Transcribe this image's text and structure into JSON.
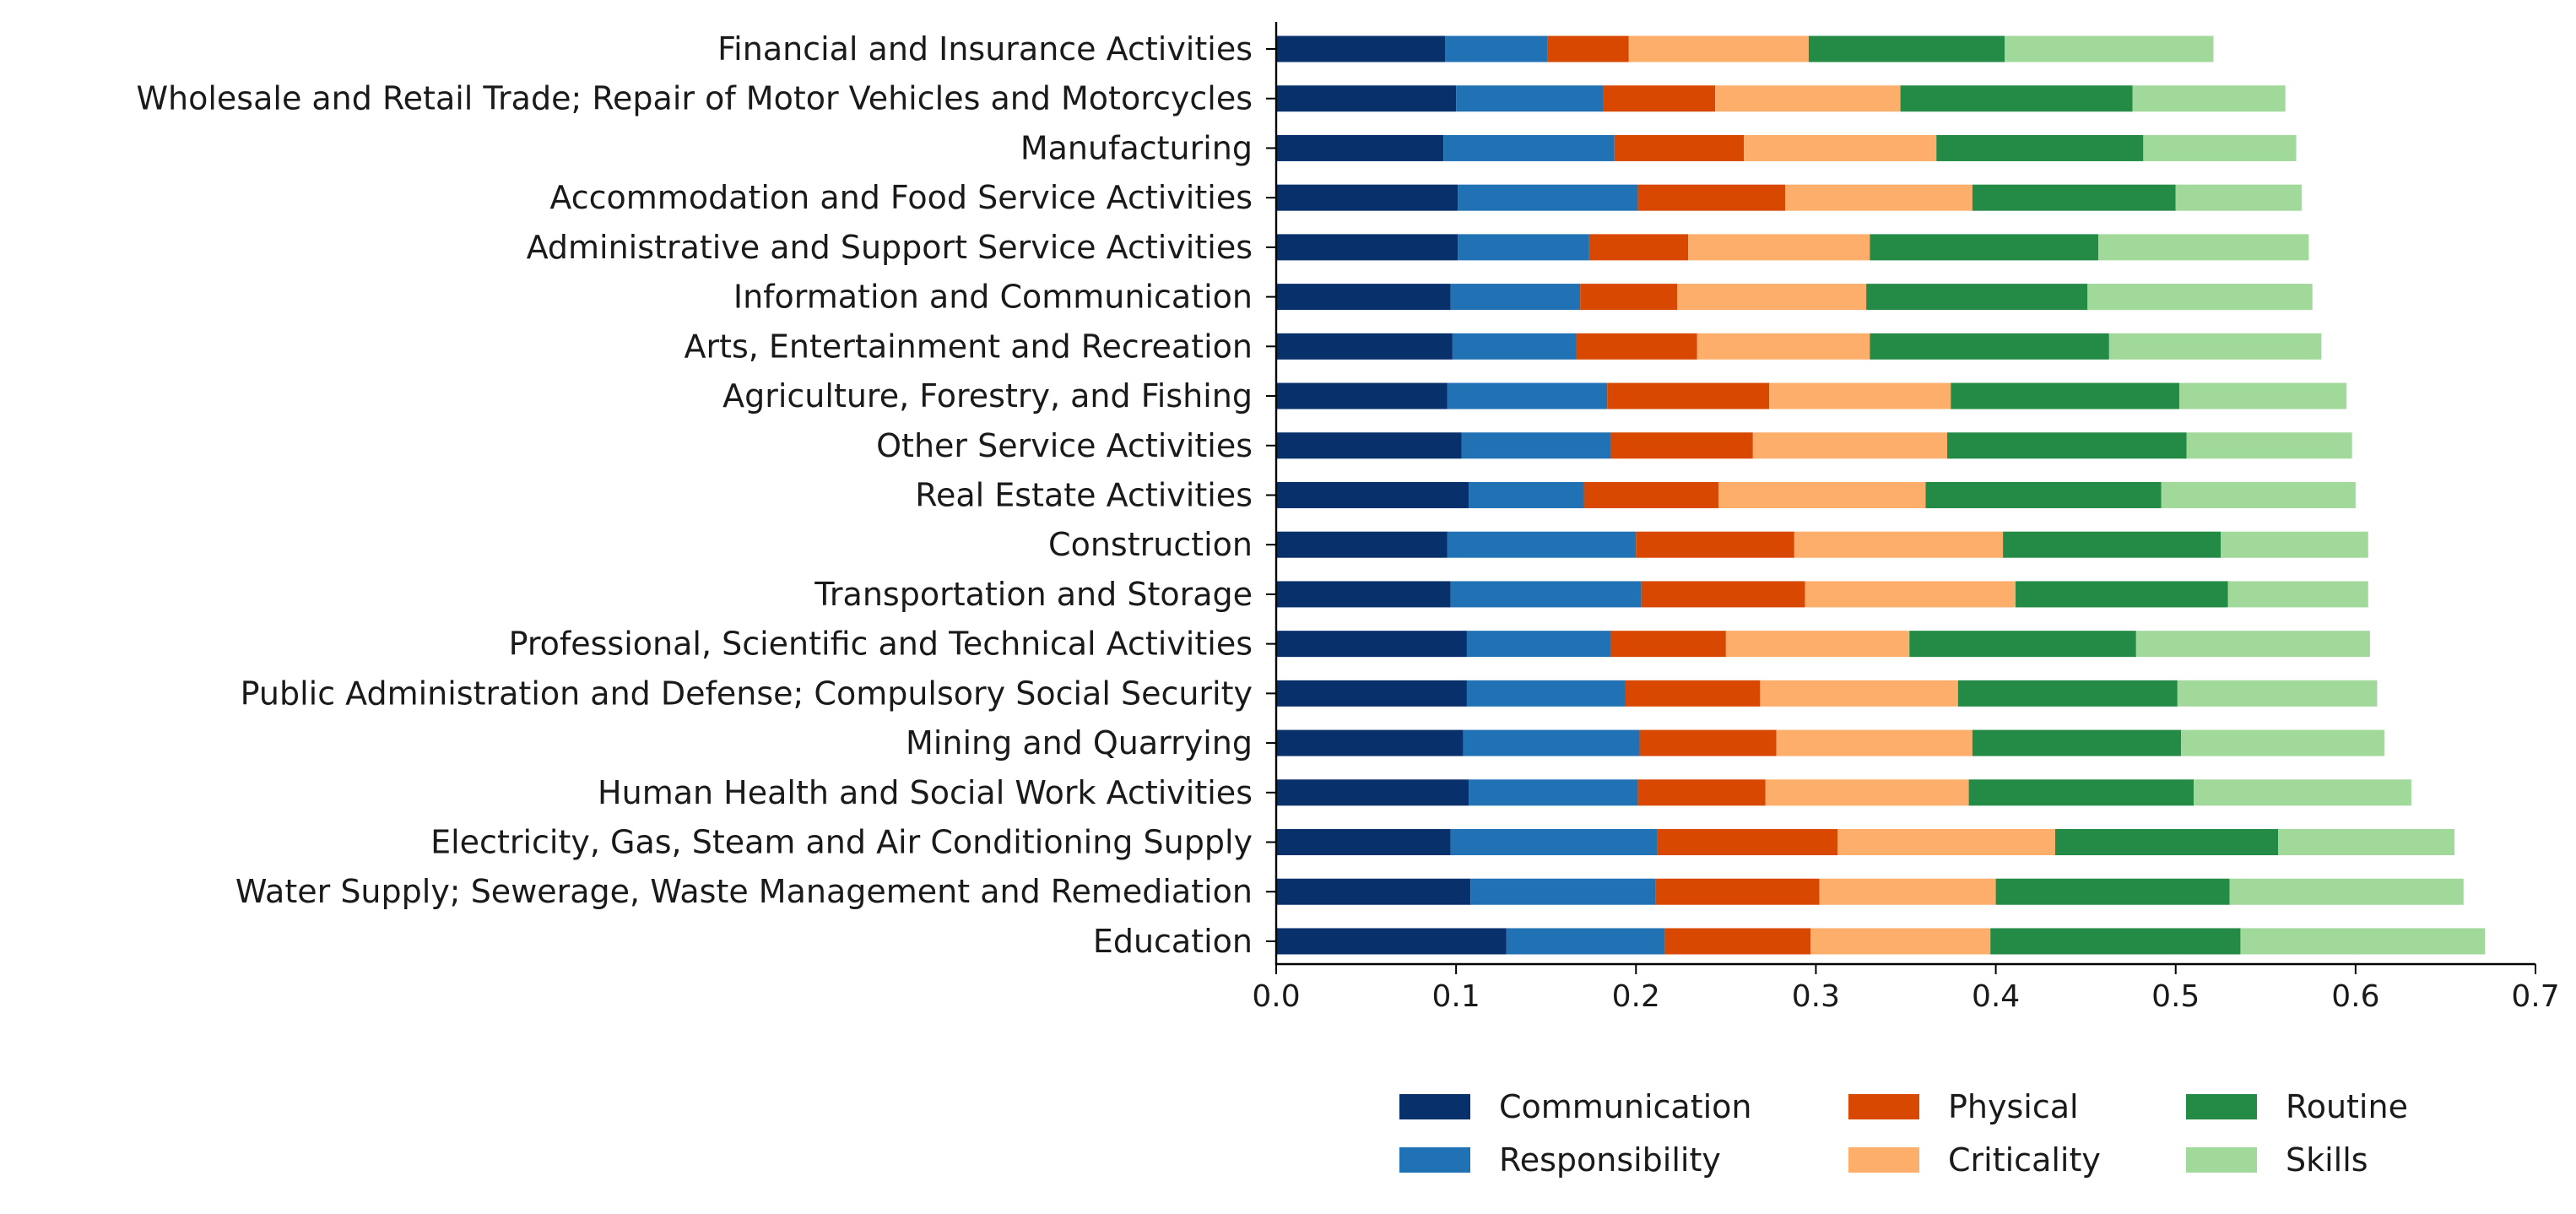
{
  "chart_data": {
    "type": "bar",
    "orientation": "horizontal",
    "stacked": true,
    "categories": [
      "Financial and Insurance Activities",
      "Wholesale and Retail Trade; Repair of Motor Vehicles and Motorcycles",
      "Manufacturing",
      "Accommodation and Food Service Activities",
      "Administrative and Support Service Activities",
      "Information and Communication",
      "Arts, Entertainment and Recreation",
      "Agriculture, Forestry, and Fishing",
      "Other Service Activities",
      "Real Estate Activities",
      "Construction",
      "Transportation and Storage",
      "Professional, Scientific and Technical Activities",
      "Public Administration and Defense; Compulsory Social Security",
      "Mining and Quarrying",
      "Human Health and Social Work Activities",
      "Electricity, Gas, Steam and Air Conditioning Supply",
      "Water Supply; Sewerage, Waste Management and Remediation",
      "Education"
    ],
    "series": [
      {
        "name": "Communication",
        "color": "#08306b",
        "values": [
          0.094,
          0.1,
          0.093,
          0.101,
          0.101,
          0.097,
          0.098,
          0.095,
          0.103,
          0.107,
          0.095,
          0.097,
          0.106,
          0.106,
          0.104,
          0.107,
          0.097,
          0.108,
          0.128
        ]
      },
      {
        "name": "Responsibility",
        "color": "#2171b5",
        "values": [
          0.057,
          0.082,
          0.095,
          0.1,
          0.073,
          0.072,
          0.069,
          0.089,
          0.083,
          0.064,
          0.105,
          0.106,
          0.08,
          0.088,
          0.098,
          0.094,
          0.115,
          0.103,
          0.088
        ]
      },
      {
        "name": "Physical",
        "color": "#d94801",
        "values": [
          0.045,
          0.062,
          0.072,
          0.082,
          0.055,
          0.054,
          0.067,
          0.09,
          0.079,
          0.075,
          0.088,
          0.091,
          0.064,
          0.075,
          0.076,
          0.071,
          0.1,
          0.091,
          0.081
        ]
      },
      {
        "name": "Criticality",
        "color": "#fdae6b",
        "values": [
          0.1,
          0.103,
          0.107,
          0.104,
          0.101,
          0.105,
          0.096,
          0.101,
          0.108,
          0.115,
          0.116,
          0.117,
          0.102,
          0.11,
          0.109,
          0.113,
          0.121,
          0.098,
          0.1
        ]
      },
      {
        "name": "Routine",
        "color": "#238b45",
        "values": [
          0.109,
          0.129,
          0.115,
          0.113,
          0.127,
          0.123,
          0.133,
          0.127,
          0.133,
          0.131,
          0.121,
          0.118,
          0.126,
          0.122,
          0.116,
          0.125,
          0.124,
          0.13,
          0.139
        ]
      },
      {
        "name": "Skills",
        "color": "#a1d99b",
        "values": [
          0.116,
          0.085,
          0.085,
          0.07,
          0.117,
          0.125,
          0.118,
          0.093,
          0.092,
          0.108,
          0.082,
          0.078,
          0.13,
          0.111,
          0.113,
          0.121,
          0.098,
          0.13,
          0.136
        ]
      }
    ],
    "xlim": [
      0,
      0.7
    ],
    "xticks": [
      "0.0",
      "0.1",
      "0.2",
      "0.3",
      "0.4",
      "0.5",
      "0.6",
      "0.7"
    ],
    "xlabel": "",
    "ylabel": "",
    "title": "",
    "grid": false,
    "legend_position": "bottom-right",
    "legend_columns": 3
  }
}
